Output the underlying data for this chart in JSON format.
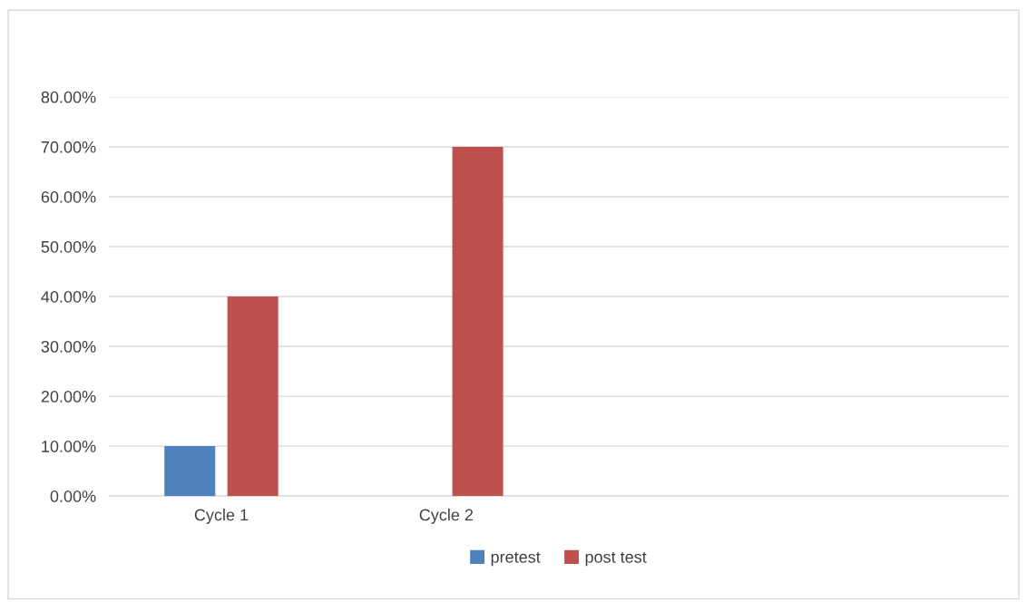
{
  "chart_data": {
    "type": "bar",
    "categories": [
      "Cycle 1",
      "Cycle 2",
      null,
      null
    ],
    "series": [
      {
        "name": "pretest",
        "color": "#4f81bd",
        "values": [
          10,
          null,
          null,
          null
        ]
      },
      {
        "name": "post test",
        "color": "#c0504d",
        "values": [
          40,
          70,
          null,
          null
        ]
      }
    ],
    "ylim": [
      0,
      80
    ],
    "yticks": [
      {
        "value": 0,
        "label": "0.00%"
      },
      {
        "value": 10,
        "label": "10.00%"
      },
      {
        "value": 20,
        "label": "20.00%"
      },
      {
        "value": 30,
        "label": "30.00%"
      },
      {
        "value": 40,
        "label": "40.00%"
      },
      {
        "value": 50,
        "label": "50.00%"
      },
      {
        "value": 60,
        "label": "60.00%"
      },
      {
        "value": 70,
        "label": "70.00%"
      },
      {
        "value": 80,
        "label": "80.00%"
      }
    ],
    "grid": "y",
    "legend": "bottom"
  }
}
